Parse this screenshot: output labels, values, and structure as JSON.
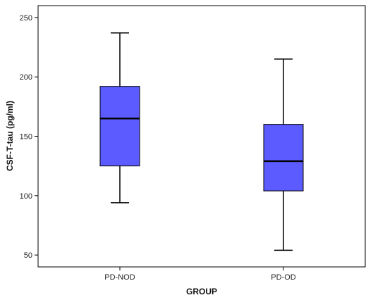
{
  "chart_data": {
    "type": "boxplot",
    "title": "",
    "xlabel": "GROUP",
    "ylabel": "CSF-T-tau (pg/ml)",
    "categories": [
      "PD-NOD",
      "PD-OD"
    ],
    "ylim": [
      40,
      260
    ],
    "yticks": [
      50,
      100,
      150,
      200,
      250
    ],
    "grid": false,
    "legend": "none",
    "box_color": "#5b5bff",
    "boxes": [
      {
        "category": "PD-NOD",
        "min": 94,
        "q1": 125,
        "median": 165,
        "q3": 192,
        "max": 237
      },
      {
        "category": "PD-OD",
        "min": 54,
        "q1": 104,
        "median": 129,
        "q3": 160,
        "max": 215
      }
    ]
  }
}
